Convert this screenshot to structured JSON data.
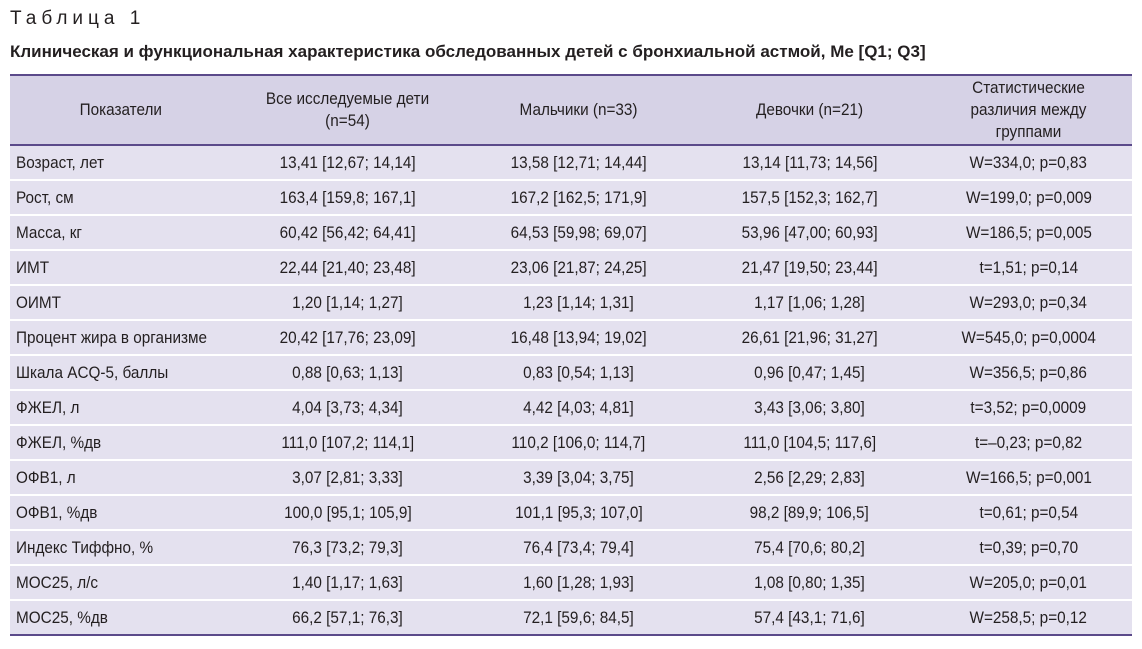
{
  "table_number": "Таблица 1",
  "table_title": "Клиническая и функциональная характеристика обследованных детей с бронхиальной астмой, Me [Q1; Q3]",
  "columns": [
    "Показатели",
    "Все исследуемые дети (n=54)",
    "Мальчики (n=33)",
    "Девочки (n=21)",
    "Статистические различия между группами"
  ],
  "rows": [
    [
      "Возраст, лет",
      "13,41 [12,67; 14,14]",
      "13,58 [12,71; 14,44]",
      "13,14 [11,73; 14,56]",
      "W=334,0; p=0,83"
    ],
    [
      "Рост, см",
      "163,4 [159,8; 167,1]",
      "167,2 [162,5; 171,9]",
      "157,5 [152,3; 162,7]",
      "W=199,0; p=0,009"
    ],
    [
      "Масса, кг",
      "60,42 [56,42; 64,41]",
      "64,53 [59,98; 69,07]",
      "53,96 [47,00; 60,93]",
      "W=186,5; p=0,005"
    ],
    [
      "ИМТ",
      "22,44 [21,40; 23,48]",
      "23,06 [21,87; 24,25]",
      "21,47 [19,50; 23,44]",
      "t=1,51; p=0,14"
    ],
    [
      "ОИМТ",
      "1,20 [1,14; 1,27]",
      "1,23 [1,14; 1,31]",
      "1,17 [1,06; 1,28]",
      "W=293,0; p=0,34"
    ],
    [
      "Процент жира в организме",
      "20,42 [17,76; 23,09]",
      "16,48 [13,94; 19,02]",
      "26,61 [21,96; 31,27]",
      "W=545,0; p=0,0004"
    ],
    [
      "Шкала ACQ-5, баллы",
      "0,88 [0,63; 1,13]",
      "0,83 [0,54; 1,13]",
      "0,96 [0,47; 1,45]",
      "W=356,5; p=0,86"
    ],
    [
      "ФЖЕЛ, л",
      "4,04 [3,73; 4,34]",
      "4,42 [4,03; 4,81]",
      "3,43 [3,06; 3,80]",
      "t=3,52; p=0,0009"
    ],
    [
      "ФЖЕЛ, %дв",
      "111,0 [107,2; 114,1]",
      "110,2 [106,0; 114,7]",
      "111,0 [104,5; 117,6]",
      "t=–0,23; p=0,82"
    ],
    [
      "ОФВ1, л",
      "3,07 [2,81; 3,33]",
      "3,39 [3,04; 3,75]",
      "2,56 [2,29; 2,83]",
      "W=166,5; p=0,001"
    ],
    [
      "ОФВ1, %дв",
      "100,0 [95,1; 105,9]",
      "101,1 [95,3; 107,0]",
      "98,2 [89,9; 106,5]",
      "t=0,61; p=0,54"
    ],
    [
      "Индекс Тиффно, %",
      "76,3 [73,2; 79,3]",
      "76,4 [73,4; 79,4]",
      "75,4 [70,6; 80,2]",
      "t=0,39; p=0,70"
    ],
    [
      "МОС25, л/с",
      "1,40 [1,17; 1,63]",
      "1,60 [1,28; 1,93]",
      "1,08 [0,80; 1,35]",
      "W=205,0; p=0,01"
    ],
    [
      "МОС25, %дв",
      "66,2 [57,1; 76,3]",
      "72,1 [59,6; 84,5]",
      "57,4 [43,1; 71,6]",
      "W=258,5; p=0,12"
    ]
  ],
  "colors": {
    "header_bg": "#d6d2e6",
    "body_bg": "#e4e1ef",
    "rule": "#5b4a8a",
    "text": "#231f20"
  }
}
